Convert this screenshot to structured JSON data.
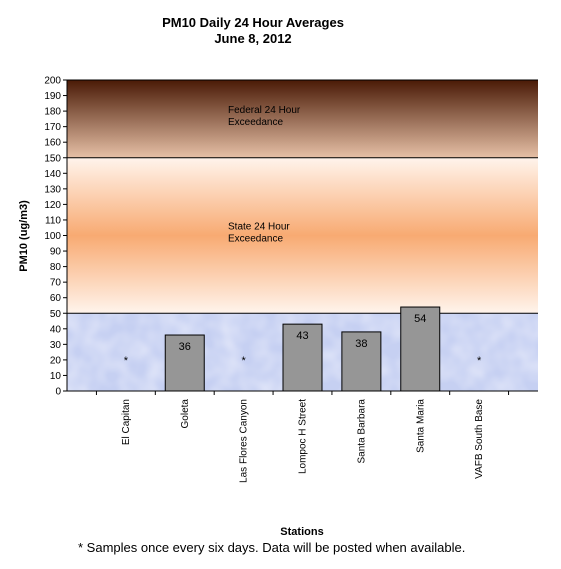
{
  "chart_data": {
    "type": "bar",
    "title": "PM10 Daily 24 Hour Averages",
    "subtitle": "June 8, 2012",
    "xlabel": "Stations",
    "ylabel": "PM10 (ug/m3)",
    "ylim": [
      0,
      200
    ],
    "yticks": [
      0,
      10,
      20,
      30,
      40,
      50,
      60,
      70,
      80,
      90,
      100,
      110,
      120,
      130,
      140,
      150,
      160,
      170,
      180,
      190,
      200
    ],
    "categories": [
      "El Capitan",
      "Goleta",
      "Las Flores Canyon",
      "Lompoc H Street",
      "Santa Barbara",
      "Santa Maria",
      "VAFB South Base"
    ],
    "values": [
      null,
      36,
      null,
      43,
      38,
      54,
      null
    ],
    "data_labels": [
      "*",
      "36",
      "*",
      "43",
      "38",
      "54",
      "*"
    ],
    "bar_color": "#969696",
    "zones": [
      {
        "label_lines": [
          "Federal 24 Hour",
          "Exceedance"
        ],
        "from": 150,
        "to": 200,
        "color_top": "#4a1a06",
        "color_bottom": "#e6c0a6"
      },
      {
        "label_lines": [
          "State 24 Hour",
          "Exceedance"
        ],
        "from": 50,
        "to": 150,
        "color_edge": "#fff4ec",
        "color_mid": "#f8aa72"
      },
      {
        "from": 0,
        "to": 50,
        "color": "#c6d0f2"
      }
    ],
    "threshold_lines": [
      50,
      150
    ],
    "grid": false,
    "legend": "none"
  },
  "footnote": "*  Samples once every six days.  Data will be posted when available."
}
